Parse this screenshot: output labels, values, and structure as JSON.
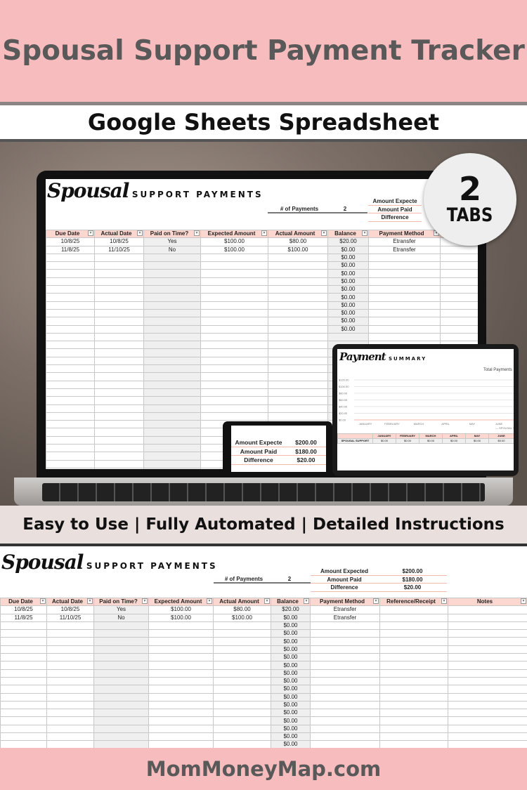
{
  "banner": {
    "title": "Spousal Support Payment Tracker",
    "subtitle": "Google Sheets Spreadsheet",
    "features": "Easy to Use | Fully Automated | Detailed Instructions",
    "footer": "MomMoneyMap.com"
  },
  "badge": {
    "number": "2",
    "label": "TABS"
  },
  "colors": {
    "pink": "#f7bcbe",
    "header_pink": "#fbd7cf",
    "text_gray": "#595959"
  },
  "sheet": {
    "logo_script": "Spousal",
    "logo_caps": "SUPPORT PAYMENTS",
    "num_payments_label": "# of Payments",
    "num_payments": "2",
    "summary": [
      {
        "label": "Amount Expected",
        "value": "$200.00"
      },
      {
        "label": "Amount Paid",
        "value": "$180.00"
      },
      {
        "label": "Difference",
        "value": "$20.00"
      }
    ],
    "laptop_summary_labels": [
      "Amount Expecte",
      "Amount Paid",
      "Difference"
    ],
    "columns": [
      "Due Date",
      "Actual Date",
      "Paid on Time?",
      "Expected Amount",
      "Actual Amount",
      "Balance",
      "Payment Method",
      "Reference/Receipt",
      "Notes"
    ],
    "rows": [
      [
        "10/8/25",
        "10/8/25",
        "Yes",
        "$100.00",
        "$80.00",
        "$20.00",
        "Etransfer",
        "",
        ""
      ],
      [
        "11/8/25",
        "11/10/25",
        "No",
        "$100.00",
        "$100.00",
        "$0.00",
        "Etransfer",
        "",
        ""
      ]
    ],
    "laptop_empty_balances": [
      "$0.00",
      "$0.00",
      "$0.00",
      "$0.00",
      "$0.00",
      "$0.00",
      "$0.00",
      "$0.00",
      "$0.00",
      "$0.00",
      "",
      "",
      "",
      "",
      "",
      "",
      "",
      "",
      "",
      "",
      "",
      "",
      "",
      "",
      "",
      "",
      "",
      ""
    ],
    "bottom_empty_balances": [
      "$0.00",
      "$0.00",
      "$0.00",
      "$0.00",
      "$0.00",
      "$0.00",
      "$0.00",
      "$0.00",
      "$0.00",
      "$0.00",
      "$0.00",
      "$0.00",
      "$0.00",
      "$0.00",
      "$0.00",
      "$0.00",
      "$0.00"
    ]
  },
  "summary_tab": {
    "logo_script": "Payment",
    "logo_caps": "SUMMARY",
    "chart_title": "Total Payments",
    "y_ticks": [
      "$120.00",
      "$100.00",
      "$80.00",
      "$60.00",
      "$40.00",
      "$20.00",
      "$0.00"
    ],
    "months": [
      "JANUARY",
      "FEBRUARY",
      "MARCH",
      "APRIL",
      "MAY",
      "JUNE"
    ],
    "legend": "SPOUSAL S",
    "row_label": "SPOUSAL SUPPORT",
    "values": [
      "$0.00",
      "$0.00",
      "$0.00",
      "$0.00",
      "$0.00",
      "$0.00"
    ]
  },
  "phone": {
    "rows": [
      {
        "label": "Amount Expecte",
        "value": "$200.00"
      },
      {
        "label": "Amount Paid",
        "value": "$180.00"
      },
      {
        "label": "Difference",
        "value": "$20.00"
      }
    ]
  }
}
